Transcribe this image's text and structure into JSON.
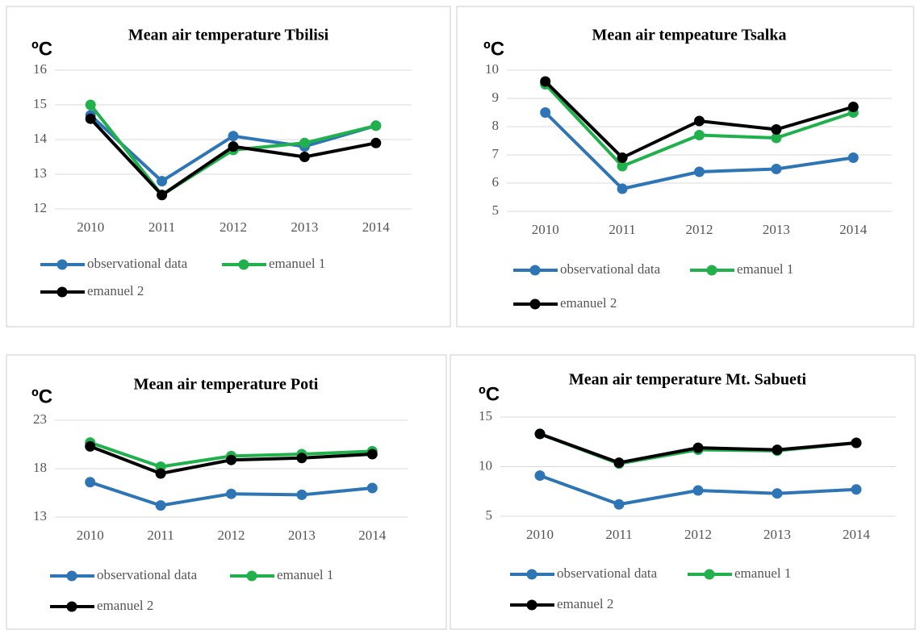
{
  "chart_data": [
    {
      "type": "line",
      "title": "Mean air temperature Tbilisi",
      "ylabel": "ºC",
      "categories": [
        "2010",
        "2011",
        "2012",
        "2013",
        "2014"
      ],
      "ylim": [
        12,
        16
      ],
      "yticks": [
        12,
        13,
        14,
        15,
        16
      ],
      "grid": true,
      "series": [
        {
          "name": "observational data",
          "color": "#2e75b6",
          "values": [
            14.7,
            12.8,
            14.1,
            13.8,
            14.4
          ]
        },
        {
          "name": "emanuel 1",
          "color": "#21b14c",
          "values": [
            15.0,
            12.4,
            13.7,
            13.9,
            14.4
          ]
        },
        {
          "name": "emanuel 2",
          "color": "#000000",
          "values": [
            14.6,
            12.4,
            13.8,
            13.5,
            13.9
          ]
        }
      ]
    },
    {
      "type": "line",
      "title": "Mean air tempeature Tsalka",
      "ylabel": "ºC",
      "categories": [
        "2010",
        "2011",
        "2012",
        "2013",
        "2014"
      ],
      "ylim": [
        5,
        10
      ],
      "yticks": [
        5,
        6,
        7,
        8,
        9,
        10
      ],
      "grid": true,
      "series": [
        {
          "name": "observational data",
          "color": "#2e75b6",
          "values": [
            8.5,
            5.8,
            6.4,
            6.5,
            6.9
          ]
        },
        {
          "name": "emanuel 1",
          "color": "#21b14c",
          "values": [
            9.5,
            6.6,
            7.7,
            7.6,
            8.5
          ]
        },
        {
          "name": "emanuel 2",
          "color": "#000000",
          "values": [
            9.6,
            6.9,
            8.2,
            7.9,
            8.7
          ]
        }
      ]
    },
    {
      "type": "line",
      "title": "Mean air temperature Poti",
      "ylabel": "ºC",
      "categories": [
        "2010",
        "2011",
        "2012",
        "2013",
        "2014"
      ],
      "ylim": [
        13,
        23
      ],
      "yticks": [
        13,
        18,
        23
      ],
      "grid": true,
      "series": [
        {
          "name": "observational data",
          "color": "#2e75b6",
          "values": [
            16.6,
            14.2,
            15.4,
            15.3,
            16.0
          ]
        },
        {
          "name": "emanuel 1",
          "color": "#21b14c",
          "values": [
            20.7,
            18.2,
            19.3,
            19.5,
            19.8
          ]
        },
        {
          "name": "emanuel 2",
          "color": "#000000",
          "values": [
            20.3,
            17.5,
            18.9,
            19.1,
            19.5
          ]
        }
      ]
    },
    {
      "type": "line",
      "title": "Mean air temperature Mt. Sabueti",
      "ylabel": "ºC",
      "categories": [
        "2010",
        "2011",
        "2012",
        "2013",
        "2014"
      ],
      "ylim": [
        5,
        15
      ],
      "yticks": [
        5,
        10,
        15
      ],
      "grid": true,
      "series": [
        {
          "name": "observational data",
          "color": "#2e75b6",
          "values": [
            9.1,
            6.2,
            7.6,
            7.3,
            7.7
          ]
        },
        {
          "name": "emanuel 1",
          "color": "#21b14c",
          "values": [
            13.3,
            10.3,
            11.7,
            11.6,
            12.4
          ]
        },
        {
          "name": "emanuel 2",
          "color": "#000000",
          "values": [
            13.3,
            10.4,
            11.9,
            11.7,
            12.4
          ]
        }
      ]
    }
  ]
}
